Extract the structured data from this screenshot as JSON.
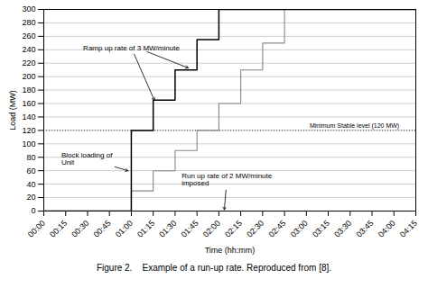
{
  "chart_data": {
    "type": "line",
    "xlabel": "Time (hh:mm)",
    "ylabel": "Load (MW)",
    "caption": "Figure 2.    Example of a run-up rate. Reproduced from [8].",
    "xlim": [
      0,
      17
    ],
    "ylim": [
      0,
      300
    ],
    "xticks": [
      {
        "value": 0,
        "label": "00:00"
      },
      {
        "value": 1,
        "label": "00:15"
      },
      {
        "value": 2,
        "label": "00:30"
      },
      {
        "value": 3,
        "label": "00:45"
      },
      {
        "value": 4,
        "label": "01:00"
      },
      {
        "value": 5,
        "label": "01:15"
      },
      {
        "value": 6,
        "label": "01:30"
      },
      {
        "value": 7,
        "label": "01:45"
      },
      {
        "value": 8,
        "label": "02:00"
      },
      {
        "value": 9,
        "label": "02:15"
      },
      {
        "value": 10,
        "label": "02:30"
      },
      {
        "value": 11,
        "label": "02:45"
      },
      {
        "value": 12,
        "label": "03:00"
      },
      {
        "value": 13,
        "label": "03:15"
      },
      {
        "value": 14,
        "label": "03:30"
      },
      {
        "value": 15,
        "label": "03:45"
      },
      {
        "value": 16,
        "label": "04:00"
      },
      {
        "value": 17,
        "label": "04:15"
      }
    ],
    "yticks": [
      0,
      20,
      40,
      60,
      80,
      100,
      120,
      140,
      160,
      180,
      200,
      220,
      240,
      260,
      280,
      300
    ],
    "grid": "y",
    "series": [
      {
        "color": "#000000",
        "x": [
          0,
          4,
          4,
          5,
          5,
          6,
          6,
          7,
          7,
          8,
          8,
          17
        ],
        "values": [
          0,
          0,
          120,
          120,
          165,
          165,
          210,
          210,
          255,
          255,
          300,
          300
        ]
      },
      {
        "color": "#888888",
        "x": [
          0,
          4,
          4,
          5,
          5,
          6,
          6,
          7,
          7,
          8,
          8,
          9,
          9,
          10,
          10,
          11,
          11,
          12,
          12,
          17
        ],
        "values": [
          0,
          0,
          30,
          30,
          60,
          60,
          90,
          90,
          120,
          120,
          160,
          160,
          210,
          210,
          250,
          250,
          300,
          300,
          300,
          300
        ]
      }
    ],
    "reference_lines": [
      {
        "y": 120,
        "color": "#444444",
        "line_style": "dotted"
      }
    ],
    "annotations": [
      {
        "text": "Block loading of\nUnit",
        "x": 0.8,
        "y": 78,
        "arrows": [
          {
            "x": 3.85,
            "y": 60
          }
        ]
      },
      {
        "text": "Ramp up rate of 3 MW/minute",
        "x": 1.8,
        "y": 243,
        "arrows": [
          {
            "x": 5.05,
            "y": 165
          },
          {
            "from_x": 4.65,
            "from_y": 238,
            "x": 6.6,
            "y": 213
          }
        ]
      },
      {
        "text": "Minimum Stable level (120 MW)",
        "x": 12.15,
        "y": 124
      },
      {
        "text": "Run up rate of 2 MW/minute\nimposed",
        "x": 6.3,
        "y": 47,
        "arrows": [
          {
            "x": 8.25,
            "y": 2
          }
        ]
      }
    ]
  }
}
